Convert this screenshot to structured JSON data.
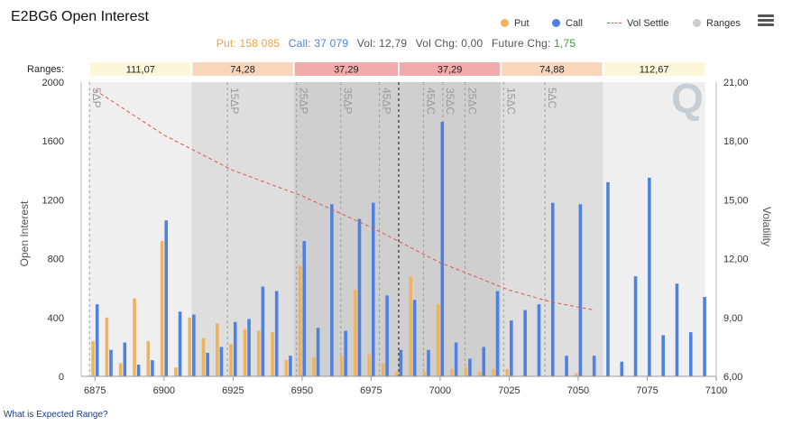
{
  "title": "E2BG6 Open Interest",
  "legend": [
    {
      "label": "Put",
      "color": "#f0b35c",
      "kind": "dot"
    },
    {
      "label": "Call",
      "color": "#4f82e0",
      "kind": "dot"
    },
    {
      "label": "Vol Settle",
      "color": "#e0584a",
      "kind": "dash"
    },
    {
      "label": "Ranges",
      "color": "#cccccc",
      "kind": "dot"
    }
  ],
  "menu_icon": "hamburger-menu-icon",
  "stats": {
    "put_label": "Put:",
    "put_value": "158 085",
    "call_label": "Call:",
    "call_value": "37 079",
    "vol_label": "Vol:",
    "vol_value": "12,79",
    "volchg_label": "Vol Chg:",
    "volchg_value": "0,00",
    "futchg_label": "Future Chg:",
    "futchg_value": "1,75",
    "colors": {
      "put": "#f0a03c",
      "call": "#4f82e0",
      "neutral": "#555555",
      "futchg": "#3a9a3a"
    }
  },
  "footer_link": "What is Expected Range?",
  "watermark": "Q",
  "chart_data": {
    "type": "bar",
    "ranges_label": "Ranges:",
    "ranges": [
      {
        "from": 6873,
        "to": 6910,
        "label": "111,07",
        "shade": "#efefef",
        "tag": "#fdf6d8"
      },
      {
        "from": 6910,
        "to": 6947,
        "label": "74,28",
        "shade": "#dedede",
        "tag": "#f8d6bc"
      },
      {
        "from": 6947,
        "to": 6985,
        "label": "37,29",
        "shade": "#cfcfcf",
        "tag": "#f2aaaa"
      },
      {
        "from": 6985,
        "to": 7022,
        "label": "37,29",
        "shade": "#cfcfcf",
        "tag": "#f2aaaa"
      },
      {
        "from": 7022,
        "to": 7059,
        "label": "74,88",
        "shade": "#dedede",
        "tag": "#f8d6bc"
      },
      {
        "from": 7059,
        "to": 7096,
        "label": "112,67",
        "shade": "#efefef",
        "tag": "#fdf6d8"
      }
    ],
    "x": {
      "min": 6870,
      "max": 7100,
      "ticks": [
        6875,
        6900,
        6925,
        6950,
        6975,
        7000,
        7025,
        7050,
        7075,
        7100
      ]
    },
    "y_left": {
      "label": "Open Interest",
      "min": 0,
      "max": 2000,
      "ticks": [
        0,
        400,
        800,
        1200,
        1600,
        2000
      ]
    },
    "y_right": {
      "label": "Volatility",
      "min": 6.0,
      "max": 21.0,
      "ticks": [
        "6,00",
        "9,00",
        "12,00",
        "15,00",
        "18,00",
        "21,00"
      ]
    },
    "strikes": [
      6875,
      6880,
      6885,
      6890,
      6895,
      6900,
      6905,
      6910,
      6915,
      6920,
      6925,
      6930,
      6935,
      6940,
      6945,
      6950,
      6955,
      6960,
      6965,
      6970,
      6975,
      6980,
      6985,
      6990,
      6995,
      7000,
      7005,
      7010,
      7015,
      7020,
      7025,
      7030,
      7035,
      7040,
      7045,
      7050,
      7055,
      7060,
      7065,
      7070,
      7075,
      7080,
      7085,
      7090,
      7095
    ],
    "series": [
      {
        "name": "Put",
        "color": "#f0b35c",
        "values": [
          240,
          400,
          90,
          530,
          240,
          920,
          60,
          400,
          260,
          360,
          220,
          320,
          310,
          300,
          110,
          750,
          130,
          0,
          140,
          590,
          150,
          90,
          30,
          680,
          30,
          490,
          50,
          60,
          30,
          50,
          50,
          0,
          0,
          0,
          0,
          20,
          0,
          0,
          0,
          0,
          0,
          0,
          0,
          0,
          0
        ]
      },
      {
        "name": "Call",
        "color": "#4f82e0",
        "values": [
          490,
          180,
          230,
          80,
          110,
          1060,
          440,
          420,
          160,
          200,
          370,
          390,
          610,
          580,
          140,
          920,
          330,
          1170,
          310,
          1070,
          1180,
          550,
          180,
          520,
          180,
          1730,
          230,
          120,
          200,
          580,
          380,
          450,
          490,
          1180,
          140,
          1170,
          140,
          1320,
          100,
          680,
          1350,
          280,
          630,
          300,
          540
        ]
      },
      {
        "name": "Vol Settle",
        "color": "#e0584a",
        "x": [
          6875,
          6900,
          6925,
          6950,
          6975,
          7000,
          7025,
          7040,
          7055
        ],
        "values": [
          20.6,
          18.3,
          16.5,
          15.2,
          13.6,
          11.8,
          10.4,
          9.8,
          9.4
        ]
      }
    ],
    "delta_lines": [
      {
        "x": 6873,
        "label": "5ΔP"
      },
      {
        "x": 6923,
        "label": "15ΔP"
      },
      {
        "x": 6948,
        "label": "25ΔP"
      },
      {
        "x": 6964,
        "label": "35ΔP"
      },
      {
        "x": 6978,
        "label": "45ΔP"
      },
      {
        "x": 6994,
        "label": "45ΔC"
      },
      {
        "x": 7001,
        "label": "35ΔC"
      },
      {
        "x": 7009,
        "label": "25ΔC"
      },
      {
        "x": 7023,
        "label": "15ΔC"
      },
      {
        "x": 7038,
        "label": "5ΔC"
      }
    ],
    "atm_line": 6985
  }
}
